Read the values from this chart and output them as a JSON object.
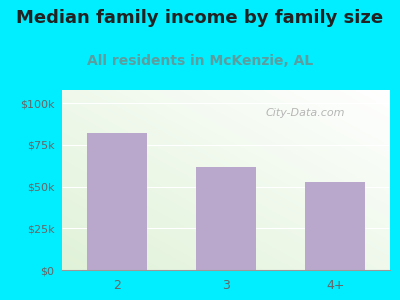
{
  "title": "Median family income by family size",
  "subtitle": "All residents in McKenzie, AL",
  "categories": [
    "2",
    "3",
    "4+"
  ],
  "values": [
    82000,
    62000,
    53000
  ],
  "bar_color": "#b9a8cc",
  "yticks": [
    0,
    25000,
    50000,
    75000,
    100000
  ],
  "ytick_labels": [
    "$0",
    "$25k",
    "$50k",
    "$75k",
    "$100k"
  ],
  "ylim": [
    0,
    108000
  ],
  "title_fontsize": 13,
  "subtitle_fontsize": 10,
  "subtitle_color": "#5a9ea0",
  "title_color": "#222222",
  "ytick_color": "#666666",
  "xtick_color": "#666666",
  "bg_outer": "#00eeff",
  "grid_color": "#cccccc",
  "watermark": "City-Data.com",
  "watermark_color": "#aaaaaa",
  "plot_bg_top": "#ffffff",
  "plot_bg_bottom": "#dff0d8"
}
